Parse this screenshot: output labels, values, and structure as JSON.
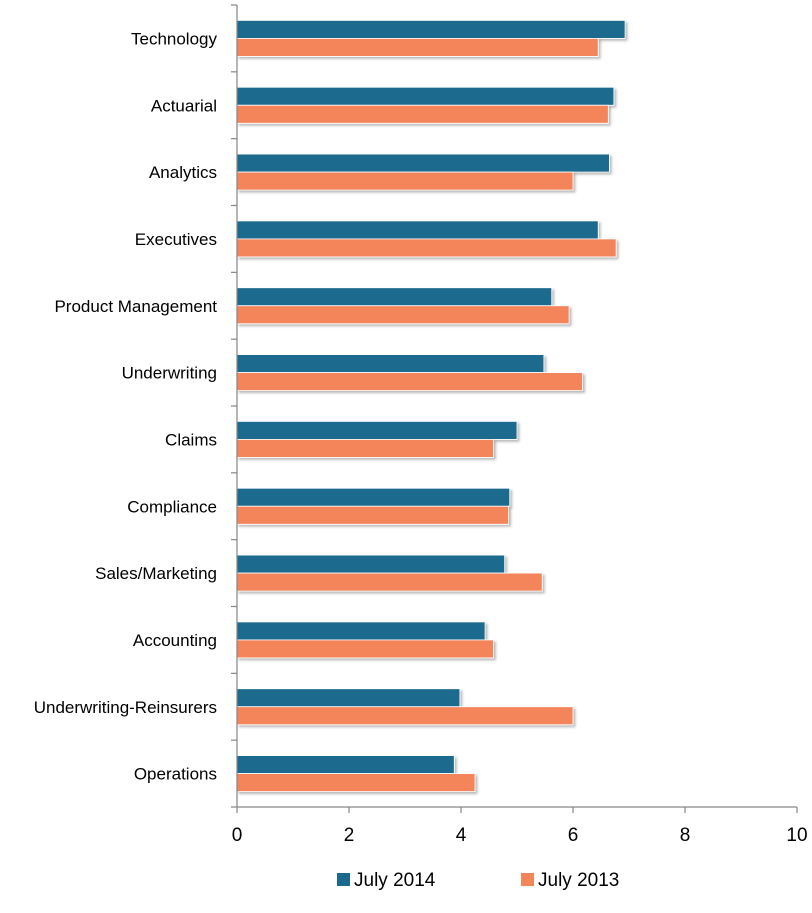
{
  "chart_data": {
    "type": "bar",
    "orientation": "horizontal",
    "categories": [
      "Technology",
      "Actuarial",
      "Analytics",
      "Executives",
      "Product Management",
      "Underwriting",
      "Claims",
      "Compliance",
      "Sales/Marketing",
      "Accounting",
      "Underwriting-Reinsurers",
      "Operations"
    ],
    "series": [
      {
        "name": "July 2014",
        "color": "#1B6A8E",
        "values": [
          6.93,
          6.73,
          6.65,
          6.45,
          5.62,
          5.48,
          5.0,
          4.87,
          4.78,
          4.43,
          3.98,
          3.88
        ]
      },
      {
        "name": "July 2013",
        "color": "#F4845A",
        "values": [
          6.45,
          6.63,
          6.0,
          6.77,
          5.93,
          6.17,
          4.58,
          4.85,
          5.45,
          4.58,
          6.0,
          4.25
        ]
      }
    ],
    "xlim": [
      0,
      10
    ],
    "xticks": [
      "0",
      "2",
      "4",
      "6",
      "8",
      "10"
    ],
    "grid": false,
    "legend_position": "bottom"
  }
}
